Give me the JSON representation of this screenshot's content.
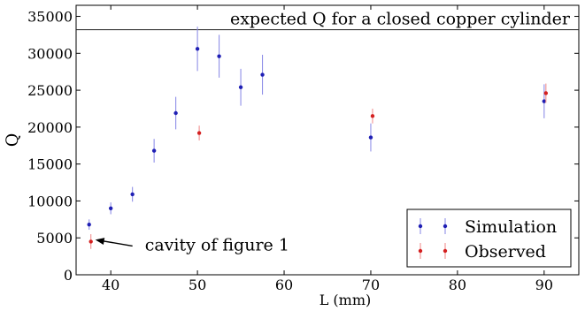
{
  "chart_data": {
    "type": "scatter",
    "title": "",
    "xlabel": "L (mm)",
    "ylabel": "Q",
    "xlim": [
      36,
      94
    ],
    "ylim": [
      0,
      36500
    ],
    "xticks": [
      40,
      50,
      60,
      70,
      80,
      90
    ],
    "yticks": [
      0,
      5000,
      10000,
      15000,
      20000,
      25000,
      30000,
      35000
    ],
    "grid": false,
    "legend_position": "lower-right",
    "reference_line": {
      "y": 33200,
      "label": "expected Q for a closed copper cylinder"
    },
    "annotation": {
      "text": "cavity of figure 1",
      "x": 37.5,
      "y": 4500
    },
    "series": [
      {
        "name": "Simulation",
        "color": "#1f1fb4",
        "errcolor": "#8f8fe8",
        "points": [
          {
            "x": 37.5,
            "y": 6800,
            "err": 700
          },
          {
            "x": 40,
            "y": 9000,
            "err": 800
          },
          {
            "x": 42.5,
            "y": 10900,
            "err": 1000
          },
          {
            "x": 45,
            "y": 16800,
            "err": 1600
          },
          {
            "x": 47.5,
            "y": 21900,
            "err": 2200
          },
          {
            "x": 50,
            "y": 30600,
            "err": 3000
          },
          {
            "x": 52.5,
            "y": 29600,
            "err": 2900
          },
          {
            "x": 55,
            "y": 25400,
            "err": 2500
          },
          {
            "x": 57.5,
            "y": 27100,
            "err": 2700
          },
          {
            "x": 70,
            "y": 18600,
            "err": 1900
          },
          {
            "x": 90,
            "y": 23500,
            "err": 2300
          }
        ]
      },
      {
        "name": "Observed",
        "color": "#d42020",
        "errcolor": "#f09090",
        "points": [
          {
            "x": 37.5,
            "y": 4500,
            "err": 1000
          },
          {
            "x": 50,
            "y": 19200,
            "err": 1000
          },
          {
            "x": 70,
            "y": 21500,
            "err": 1000
          },
          {
            "x": 90,
            "y": 24600,
            "err": 1300
          }
        ]
      }
    ]
  }
}
